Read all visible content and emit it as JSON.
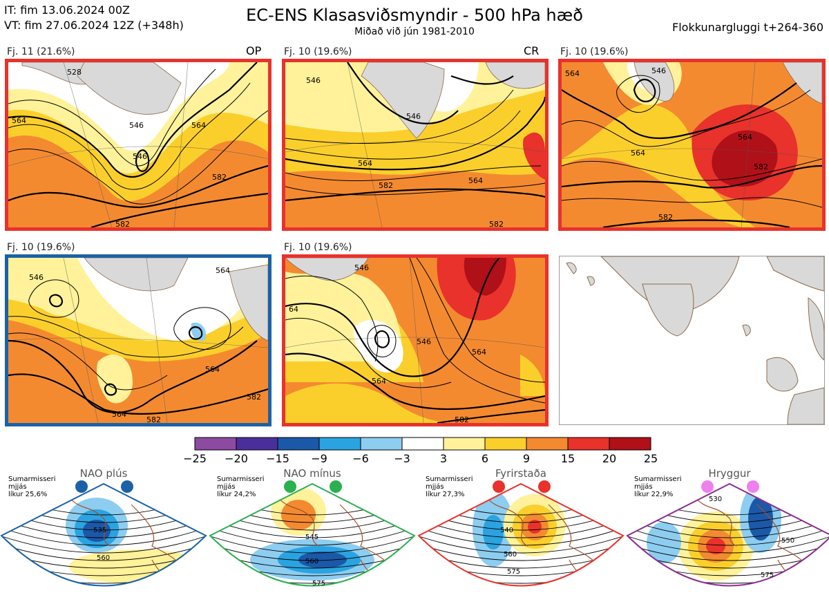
{
  "header": {
    "init_time": "IT: fim 13.06.2024 00Z",
    "valid_time": "VT: fim 27.06.2024 12Z  (+348h)",
    "title": "EC-ENS Klasasviðsmyndir - 500 hPa hæð",
    "subtitle": "Miðað við jún 1981-2010",
    "window": "Flokkunargluggi t+264-360"
  },
  "colors": {
    "frame_red": "#e8322b",
    "frame_blue": "#1a62a8",
    "land": "#d9d9d9",
    "coast": "#8b6a4a"
  },
  "panels": [
    {
      "label": "Fj. 11 (21.6%)",
      "tag": "OP",
      "frame": "red",
      "contours": [
        "528",
        "546",
        "546",
        "564",
        "564",
        "582",
        "582"
      ]
    },
    {
      "label": "Fj. 10 (19.6%)",
      "tag": "CR",
      "frame": "red",
      "contours": [
        "546",
        "546",
        "564",
        "564",
        "582",
        "582"
      ]
    },
    {
      "label": "Fj. 10 (19.6%)",
      "tag": "",
      "frame": "red",
      "contours": [
        "546",
        "564",
        "564",
        "582",
        "582",
        "564"
      ]
    },
    {
      "label": "Fj. 10 (19.6%)",
      "tag": "",
      "frame": "blue",
      "contours": [
        "546",
        "564",
        "564",
        "582",
        "564",
        "582"
      ]
    },
    {
      "label": "Fj. 10 (19.6%)",
      "tag": "",
      "frame": "red",
      "contours": [
        "546",
        "546",
        "564",
        "564",
        "582",
        "64"
      ]
    }
  ],
  "colorbar": {
    "labels": [
      "−25",
      "−20",
      "−15",
      "−9",
      "−6",
      "−3",
      "3",
      "6",
      "9",
      "15",
      "20",
      "25"
    ],
    "colors": [
      "#8c4aa0",
      "#4a2f9c",
      "#1c58a8",
      "#2ba3e0",
      "#8dcdf0",
      "#ffffff",
      "#fff29a",
      "#fbcf2b",
      "#f48a30",
      "#e8322b",
      "#b01018"
    ]
  },
  "regimes": [
    {
      "title": "NAO plús",
      "note": [
        "Sumarmisseri",
        "mjjás",
        "líkur 25,6%"
      ],
      "dot_color": "#1a62a8",
      "frame_color": "#1a62a8",
      "contours": [
        "535",
        "560"
      ]
    },
    {
      "title": "NAO mínus",
      "note": [
        "Sumarmisseri",
        "mjjás",
        "líkur 24,2%"
      ],
      "dot_color": "#2bb050",
      "frame_color": "#2bb050",
      "contours": [
        "545",
        "560",
        "575"
      ]
    },
    {
      "title": "Fyrirstaða",
      "note": [
        "Sumarmisseri",
        "mjjás",
        "líkur 27,3%"
      ],
      "dot_color": "#e8322b",
      "frame_color": "#e8322b",
      "contours": [
        "540",
        "560",
        "575"
      ]
    },
    {
      "title": "Hryggur",
      "note": [
        "Sumarmisseri",
        "mjjás",
        "líkur 22,9%"
      ],
      "dot_color": "#ee80ee",
      "frame_color": "#8a2d92",
      "contours": [
        "530",
        "550",
        "575"
      ]
    }
  ]
}
